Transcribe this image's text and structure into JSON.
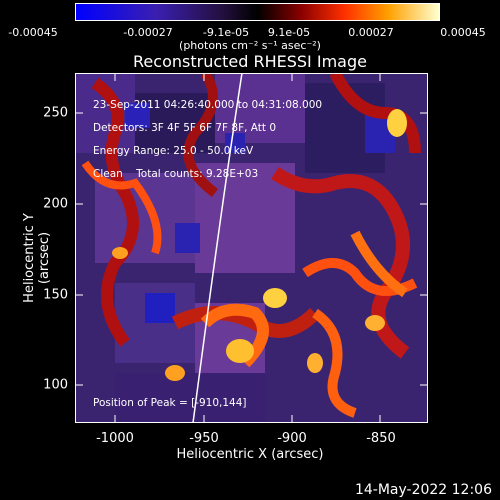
{
  "colorbar": {
    "ticks": [
      "-0.00045",
      "-0.00027",
      "-9.1e-05",
      "9.1e-05",
      "0.00027",
      "0.00045"
    ],
    "units": "(photons cm⁻² s⁻¹ asec⁻²)"
  },
  "title": "Reconstructed RHESSI Image",
  "info": {
    "line1": "23-Sep-2011 04:26:40.000 to 04:31:08.000",
    "line2": "Detectors: 3F 4F 5F 6F 7F 8F, Att 0",
    "line3": "Energy Range: 25.0 - 50.0 keV",
    "line4": "Clean    Total counts: 9.28E+03"
  },
  "peak": "Position of Peak = [-910,144]",
  "axes": {
    "xlabel": "Heliocentric X (arcsec)",
    "ylabel": "Heliocentric Y (arcsec)",
    "xticks": [
      "-1000",
      "-950",
      "-900",
      "-850"
    ],
    "yticks": [
      "250",
      "200",
      "150",
      "100"
    ]
  },
  "footer": "14-May-2022 12:06"
}
